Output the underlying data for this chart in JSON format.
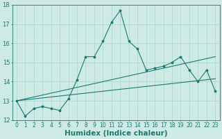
{
  "xlabel": "Humidex (Indice chaleur)",
  "x_values": [
    0,
    1,
    2,
    3,
    4,
    5,
    6,
    7,
    8,
    9,
    10,
    11,
    12,
    13,
    14,
    15,
    16,
    17,
    18,
    19,
    20,
    21,
    22,
    23
  ],
  "line1": [
    13.0,
    12.2,
    12.6,
    12.7,
    12.6,
    12.5,
    13.1,
    14.1,
    15.3,
    15.3,
    16.1,
    17.1,
    17.7,
    16.1,
    15.7,
    14.6,
    14.7,
    14.8,
    15.0,
    15.3,
    14.6,
    14.0,
    14.6,
    13.5
  ],
  "trend1_start": 13.0,
  "trend1_end": 15.3,
  "trend2_start": 13.0,
  "trend2_end": 14.15,
  "ylim": [
    12,
    18
  ],
  "xlim_min": -0.5,
  "xlim_max": 23.5,
  "yticks": [
    12,
    13,
    14,
    15,
    16,
    17,
    18
  ],
  "xticks": [
    0,
    1,
    2,
    3,
    4,
    5,
    6,
    7,
    8,
    9,
    10,
    11,
    12,
    13,
    14,
    15,
    16,
    17,
    18,
    19,
    20,
    21,
    22,
    23
  ],
  "line_color": "#1a7a6e",
  "bg_color": "#ceeae4",
  "grid_color": "#a8d5cc",
  "tick_fontsize": 5.5,
  "label_fontsize": 7.5
}
